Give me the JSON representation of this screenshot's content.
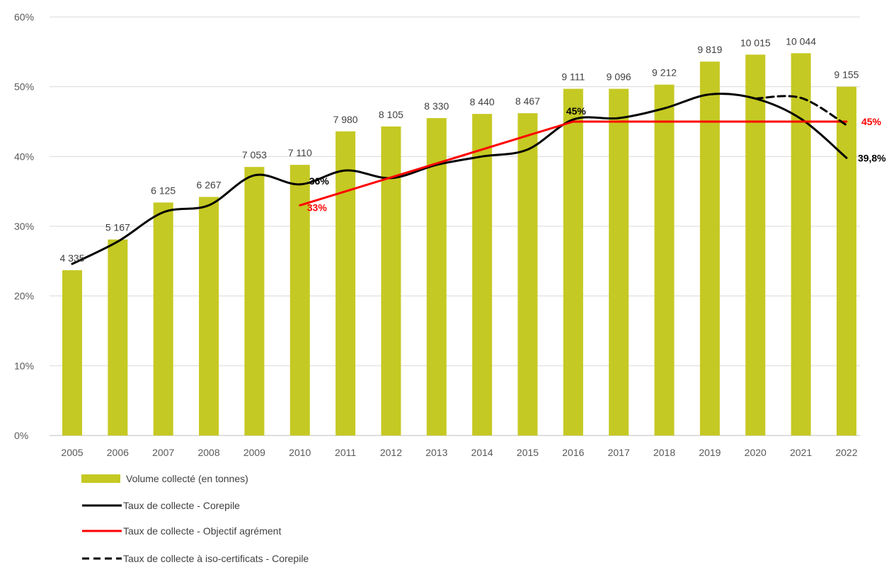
{
  "chart_data": {
    "type": "bar",
    "categories": [
      "2005",
      "2006",
      "2007",
      "2008",
      "2009",
      "2010",
      "2011",
      "2012",
      "2013",
      "2014",
      "2015",
      "2016",
      "2017",
      "2018",
      "2019",
      "2020",
      "2021",
      "2022"
    ],
    "y_axis": {
      "ylim": [
        0,
        60
      ],
      "ticks": [
        "0%",
        "10%",
        "20%",
        "30%",
        "40%",
        "50%",
        "60%"
      ],
      "grid": true
    },
    "bar_labels": [
      "4 335",
      "5 167",
      "6 125",
      "6 267",
      "7 053",
      "7 110",
      "7 980",
      "8 105",
      "8 330",
      "8 440",
      "8 467",
      "9 111",
      "9 096",
      "9 212",
      "9 819",
      "10 015",
      "10 044",
      "9 155"
    ],
    "series": [
      {
        "name": "Volume collecté (en tonnes)",
        "kind": "bar",
        "color": "#c5c923",
        "values": [
          23.7,
          28.1,
          33.4,
          34.2,
          38.5,
          38.8,
          43.6,
          44.3,
          45.5,
          46.1,
          46.2,
          49.7,
          49.7,
          50.3,
          53.6,
          54.6,
          54.8,
          50.0
        ]
      },
      {
        "name": "Taux de collecte - Corepile",
        "kind": "line",
        "color": "#000000",
        "dash": false,
        "values": [
          24.6,
          27.8,
          32.0,
          33.0,
          37.3,
          36.0,
          38.0,
          36.9,
          38.8,
          40.0,
          41.0,
          45.3,
          45.5,
          46.9,
          48.9,
          48.3,
          45.4,
          39.8
        ]
      },
      {
        "name": "Taux de collecte - Objectif agrément",
        "kind": "line",
        "color": "#ff0000",
        "dash": false,
        "x": [
          "2010",
          "2016",
          "2022"
        ],
        "values": [
          33,
          45,
          45
        ]
      },
      {
        "name": "Taux de collecte à iso-certificats - Corepile",
        "kind": "line",
        "color": "#000000",
        "dash": true,
        "x": [
          "2020",
          "2021",
          "2022"
        ],
        "values": [
          48.3,
          48.4,
          44.5
        ]
      }
    ],
    "annotations": [
      {
        "text": "36%",
        "color": "#000000",
        "x": "2010",
        "y": 36
      },
      {
        "text": "33%",
        "color": "#ff0000",
        "x": "2010",
        "y": 33
      },
      {
        "text": "45%",
        "color": "#000000",
        "x": "2016",
        "y": 45
      },
      {
        "text": "45%",
        "color": "#ff0000",
        "x": "2022",
        "y": 45
      },
      {
        "text": "39,8%",
        "color": "#000000",
        "x": "2022",
        "y": 39.8
      }
    ],
    "legend_position": "bottom-left"
  }
}
